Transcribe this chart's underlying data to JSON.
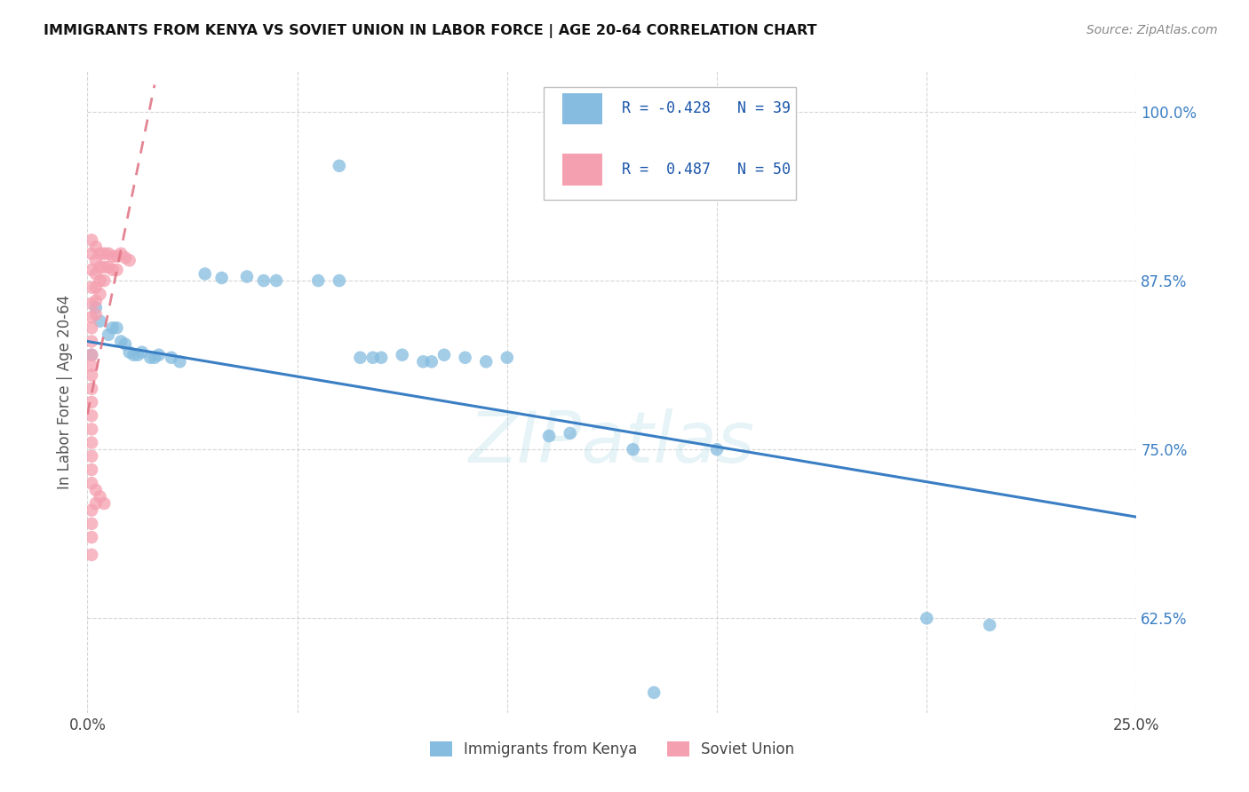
{
  "title": "IMMIGRANTS FROM KENYA VS SOVIET UNION IN LABOR FORCE | AGE 20-64 CORRELATION CHART",
  "source": "Source: ZipAtlas.com",
  "ylabel": "In Labor Force | Age 20-64",
  "xlim": [
    0.0,
    0.25
  ],
  "ylim": [
    0.555,
    1.03
  ],
  "xticks": [
    0.0,
    0.05,
    0.1,
    0.15,
    0.2,
    0.25
  ],
  "xticklabels": [
    "0.0%",
    "",
    "",
    "",
    "",
    "25.0%"
  ],
  "yticks": [
    0.625,
    0.75,
    0.875,
    1.0
  ],
  "yticklabels": [
    "62.5%",
    "75.0%",
    "87.5%",
    "100.0%"
  ],
  "kenya_color": "#85bcdf",
  "soviet_color": "#f5a0b0",
  "kenya_line_color": "#3a7ec4",
  "soviet_line_color": "#e07080",
  "watermark": "ZIPatlas",
  "kenya_line": [
    [
      0.0,
      0.83
    ],
    [
      0.25,
      0.7
    ]
  ],
  "soviet_line": [
    [
      -0.005,
      0.72
    ],
    [
      0.016,
      1.02
    ]
  ],
  "kenya_points": [
    [
      0.001,
      0.82
    ],
    [
      0.002,
      0.855
    ],
    [
      0.003,
      0.845
    ],
    [
      0.005,
      0.835
    ],
    [
      0.006,
      0.84
    ],
    [
      0.007,
      0.84
    ],
    [
      0.008,
      0.83
    ],
    [
      0.009,
      0.828
    ],
    [
      0.01,
      0.822
    ],
    [
      0.011,
      0.82
    ],
    [
      0.012,
      0.82
    ],
    [
      0.013,
      0.822
    ],
    [
      0.015,
      0.818
    ],
    [
      0.016,
      0.818
    ],
    [
      0.017,
      0.82
    ],
    [
      0.02,
      0.818
    ],
    [
      0.022,
      0.815
    ],
    [
      0.028,
      0.88
    ],
    [
      0.032,
      0.877
    ],
    [
      0.038,
      0.878
    ],
    [
      0.042,
      0.875
    ],
    [
      0.045,
      0.875
    ],
    [
      0.055,
      0.875
    ],
    [
      0.06,
      0.875
    ],
    [
      0.065,
      0.818
    ],
    [
      0.068,
      0.818
    ],
    [
      0.07,
      0.818
    ],
    [
      0.075,
      0.82
    ],
    [
      0.08,
      0.815
    ],
    [
      0.082,
      0.815
    ],
    [
      0.085,
      0.82
    ],
    [
      0.09,
      0.818
    ],
    [
      0.095,
      0.815
    ],
    [
      0.1,
      0.818
    ],
    [
      0.11,
      0.76
    ],
    [
      0.115,
      0.762
    ],
    [
      0.13,
      0.75
    ],
    [
      0.15,
      0.75
    ],
    [
      0.2,
      0.625
    ],
    [
      0.215,
      0.62
    ],
    [
      0.135,
      0.57
    ],
    [
      0.06,
      0.96
    ]
  ],
  "soviet_points": [
    [
      0.001,
      0.905
    ],
    [
      0.001,
      0.895
    ],
    [
      0.001,
      0.883
    ],
    [
      0.001,
      0.87
    ],
    [
      0.001,
      0.858
    ],
    [
      0.001,
      0.848
    ],
    [
      0.001,
      0.84
    ],
    [
      0.001,
      0.83
    ],
    [
      0.001,
      0.82
    ],
    [
      0.001,
      0.812
    ],
    [
      0.001,
      0.805
    ],
    [
      0.002,
      0.9
    ],
    [
      0.002,
      0.89
    ],
    [
      0.002,
      0.88
    ],
    [
      0.002,
      0.87
    ],
    [
      0.002,
      0.86
    ],
    [
      0.002,
      0.85
    ],
    [
      0.003,
      0.895
    ],
    [
      0.003,
      0.885
    ],
    [
      0.003,
      0.875
    ],
    [
      0.003,
      0.865
    ],
    [
      0.004,
      0.895
    ],
    [
      0.004,
      0.885
    ],
    [
      0.004,
      0.875
    ],
    [
      0.005,
      0.895
    ],
    [
      0.005,
      0.885
    ],
    [
      0.006,
      0.893
    ],
    [
      0.006,
      0.883
    ],
    [
      0.007,
      0.893
    ],
    [
      0.007,
      0.883
    ],
    [
      0.008,
      0.895
    ],
    [
      0.009,
      0.892
    ],
    [
      0.01,
      0.89
    ],
    [
      0.001,
      0.795
    ],
    [
      0.001,
      0.785
    ],
    [
      0.001,
      0.775
    ],
    [
      0.001,
      0.765
    ],
    [
      0.001,
      0.755
    ],
    [
      0.001,
      0.745
    ],
    [
      0.001,
      0.735
    ],
    [
      0.001,
      0.725
    ],
    [
      0.002,
      0.72
    ],
    [
      0.002,
      0.71
    ],
    [
      0.003,
      0.715
    ],
    [
      0.004,
      0.71
    ],
    [
      0.001,
      0.705
    ],
    [
      0.001,
      0.695
    ],
    [
      0.001,
      0.685
    ],
    [
      0.001,
      0.672
    ]
  ]
}
